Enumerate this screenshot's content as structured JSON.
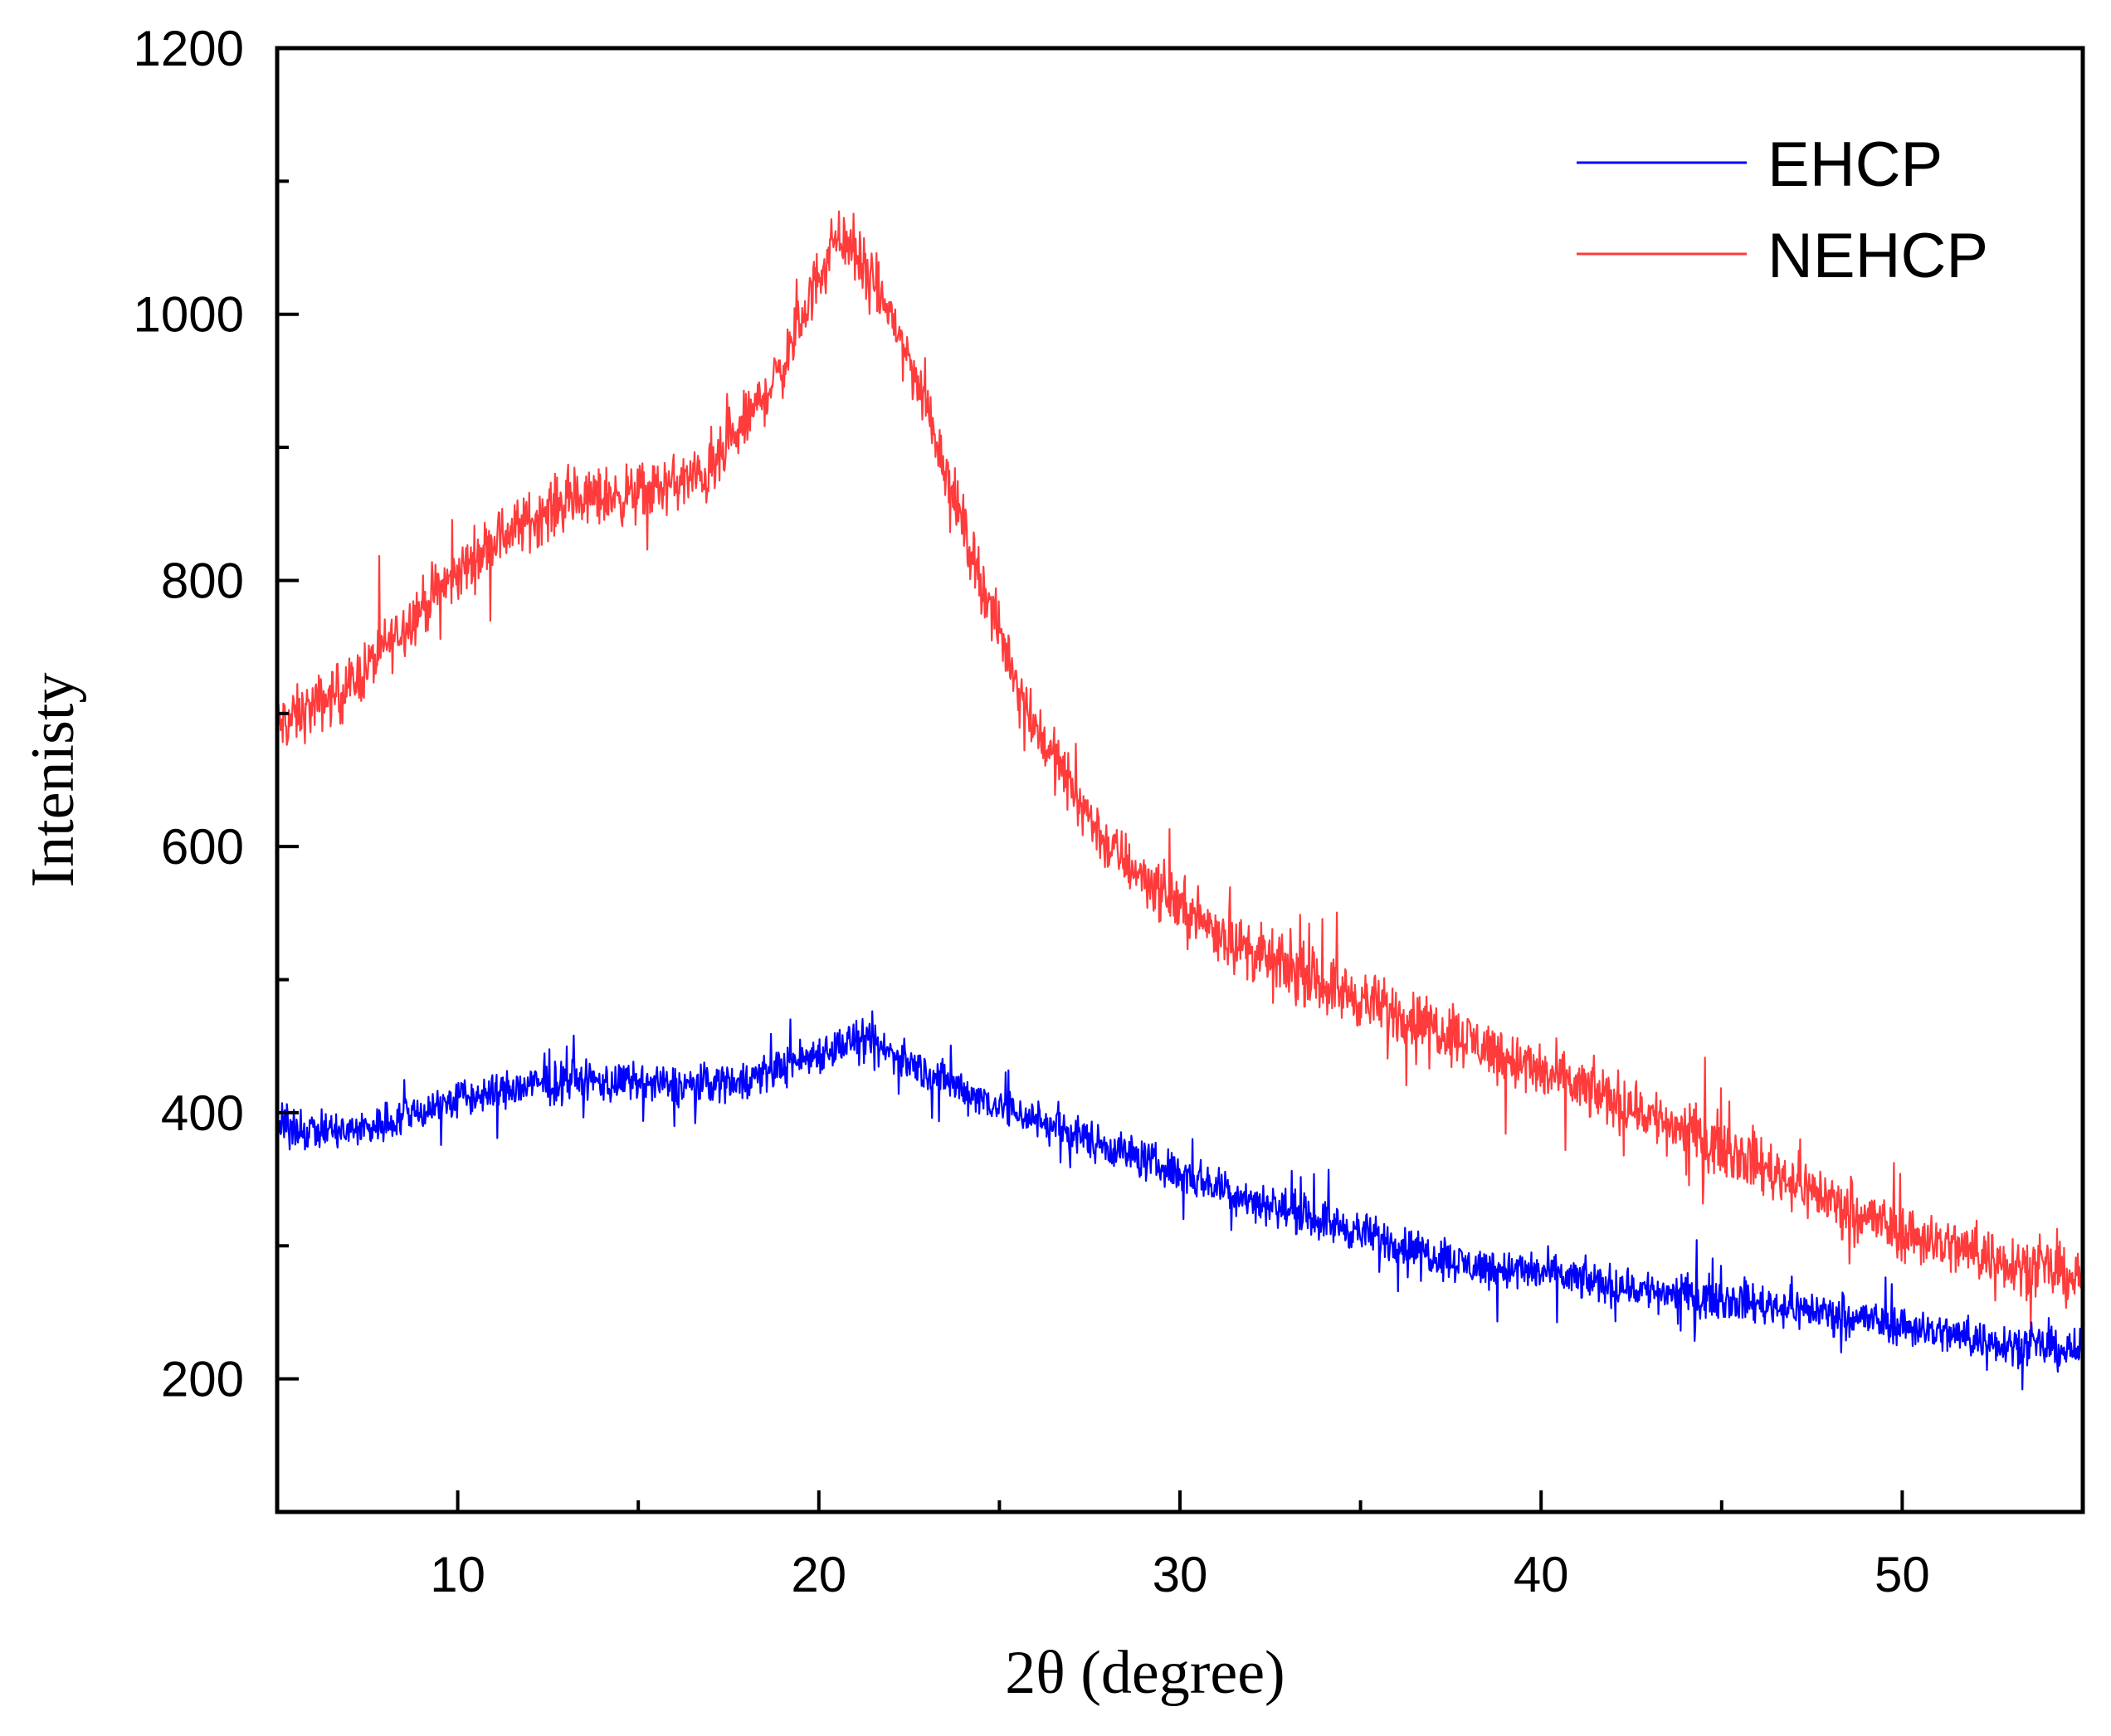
{
  "chart_data": {
    "type": "line",
    "title": "",
    "xlabel": "2θ (degree)",
    "ylabel": "Intenisty",
    "xlim": [
      5,
      55
    ],
    "ylim": [
      100,
      1200
    ],
    "x_major_ticks": [
      10,
      20,
      30,
      40,
      50
    ],
    "x_minor_ticks": [
      15,
      25,
      35,
      45
    ],
    "y_major_ticks": [
      200,
      400,
      600,
      800,
      1000,
      1200
    ],
    "y_minor_ticks": [
      300,
      500,
      700,
      900,
      1100
    ],
    "x_tick_labels": [
      "10",
      "20",
      "30",
      "40",
      "50"
    ],
    "y_tick_labels": [
      "200",
      "400",
      "600",
      "800",
      "1000",
      "1200"
    ],
    "grid": false,
    "legend_position": "top-right",
    "legend": [
      "EHCP",
      "NEHCP"
    ],
    "series": [
      {
        "name": "EHCP",
        "color": "#0000ff",
        "noise_amplitude": 22,
        "x": [
          5,
          7,
          10,
          13,
          16,
          18,
          20,
          21,
          22,
          23,
          25,
          28,
          30,
          32,
          35,
          38,
          40,
          42,
          45,
          48,
          50,
          52,
          55
        ],
        "y": [
          390,
          385,
          410,
          425,
          420,
          425,
          445,
          455,
          445,
          430,
          405,
          375,
          355,
          335,
          310,
          285,
          280,
          270,
          260,
          250,
          240,
          230,
          220
        ]
      },
      {
        "name": "NEHCP",
        "color": "#ff3b3b",
        "noise_amplitude": 32,
        "x": [
          5,
          7,
          9,
          11,
          13,
          15,
          17,
          19,
          20,
          20.5,
          21,
          22,
          23,
          24,
          25,
          26,
          28,
          30,
          32,
          35,
          38,
          40,
          42,
          45,
          48,
          50,
          52,
          55
        ],
        "y": [
          690,
          720,
          780,
          830,
          860,
          865,
          880,
          960,
          1030,
          1060,
          1045,
          1000,
          930,
          840,
          760,
          690,
          600,
          555,
          520,
          485,
          455,
          430,
          410,
          375,
          335,
          310,
          295,
          275
        ]
      }
    ]
  }
}
